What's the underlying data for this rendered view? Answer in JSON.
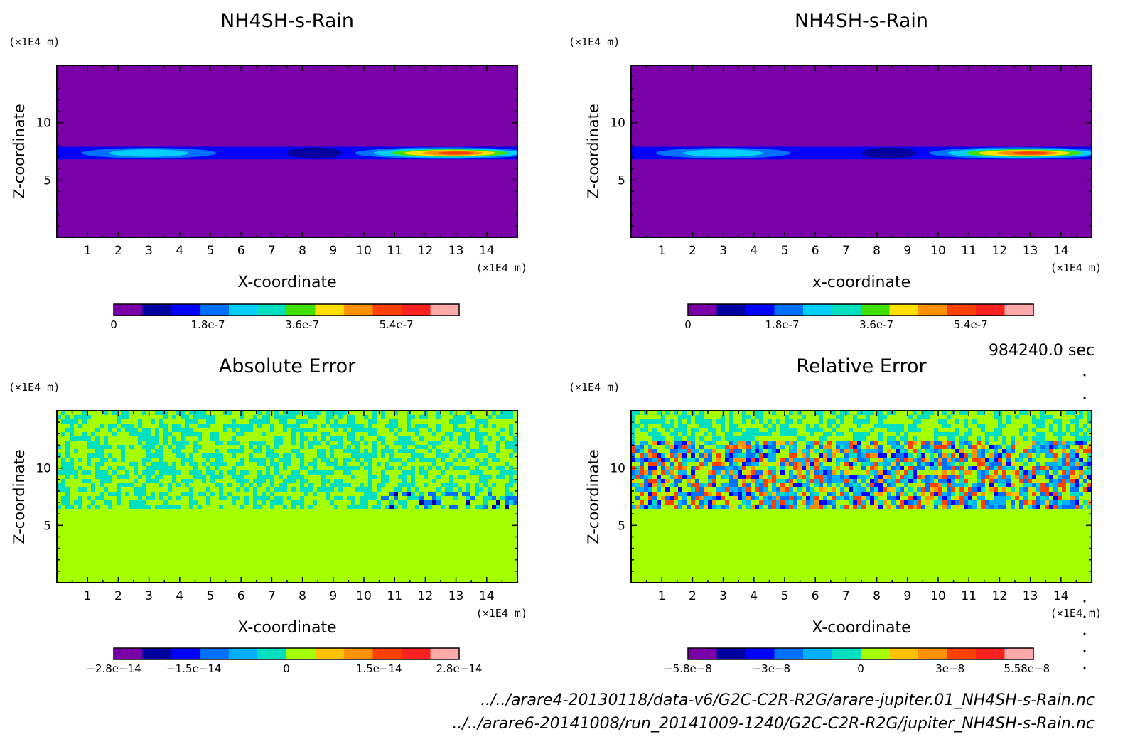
{
  "time_label": "984240.0 sec",
  "files": [
    "../../arare4-20130118/data-v6/G2C-C2R-R2G/arare-jupiter.01_NH4SH-s-Rain.nc",
    "../../arare6-20141008/run_20141009-1240/G2C-C2R-R2G/jupiter_NH4SH-s-Rain.nc"
  ],
  "chart_data": [
    {
      "type": "heatmap",
      "title": "NH4SH-s-Rain",
      "xlabel": "X-coordinate",
      "ylabel": "Z-coordinate",
      "x_unit": "(×1E4 m)",
      "y_unit": "(×1E4 m)",
      "xlim": [
        0,
        15
      ],
      "ylim": [
        0,
        15
      ],
      "x_ticks": [
        "1",
        "2",
        "3",
        "4",
        "5",
        "6",
        "7",
        "8",
        "9",
        "10",
        "11",
        "12",
        "13",
        "14"
      ],
      "y_ticks": [
        "5",
        "10"
      ],
      "field": "band",
      "band_z": [
        6.8,
        7.9
      ],
      "colorbar": {
        "colors": [
          "#7a00a8",
          "#00009e",
          "#0000ff",
          "#0070ff",
          "#00d0ff",
          "#00e0c0",
          "#40e000",
          "#ffe000",
          "#ff9000",
          "#ff4000",
          "#ff2020",
          "#ffaaaa"
        ],
        "tick_labels": [
          "0",
          "1.8e-7",
          "3.6e-7",
          "5.4e-7"
        ],
        "tick_values": [
          0,
          1.8e-07,
          3.6e-07,
          5.4e-07
        ],
        "vmin": 0,
        "vmax": 6.6e-07
      }
    },
    {
      "type": "heatmap",
      "title": "NH4SH-s-Rain",
      "xlabel": "x-coordinate",
      "ylabel": "Z-coordinate",
      "x_unit": "(×1E4 m)",
      "y_unit": "(×1E4 m)",
      "xlim": [
        0,
        15
      ],
      "ylim": [
        0,
        15
      ],
      "x_ticks": [
        "1",
        "2",
        "3",
        "4",
        "5",
        "6",
        "7",
        "8",
        "9",
        "10",
        "11",
        "12",
        "13",
        "14"
      ],
      "y_ticks": [
        "5",
        "10"
      ],
      "field": "band",
      "band_z": [
        6.8,
        7.9
      ],
      "colorbar": {
        "colors": [
          "#7a00a8",
          "#00009e",
          "#0000ff",
          "#0070ff",
          "#00d0ff",
          "#00e0c0",
          "#40e000",
          "#ffe000",
          "#ff9000",
          "#ff4000",
          "#ff2020",
          "#ffaaaa"
        ],
        "tick_labels": [
          "0",
          "1.8e-7",
          "3.6e-7",
          "5.4e-7"
        ],
        "tick_values": [
          0,
          1.8e-07,
          3.6e-07,
          5.4e-07
        ],
        "vmin": 0,
        "vmax": 6.6e-07
      }
    },
    {
      "type": "heatmap",
      "title": "Absolute Error",
      "xlabel": "X-coordinate",
      "ylabel": "Z-coordinate",
      "x_unit": "(×1E4 m)",
      "y_unit": "(×1E4 m)",
      "xlim": [
        0,
        15
      ],
      "ylim": [
        0,
        15
      ],
      "x_ticks": [
        "1",
        "2",
        "3",
        "4",
        "5",
        "6",
        "7",
        "8",
        "9",
        "10",
        "11",
        "12",
        "13",
        "14"
      ],
      "y_ticks": [
        "5",
        "10"
      ],
      "field": "abs_noise",
      "noise_z": [
        6.5,
        15
      ],
      "colorbar": {
        "colors": [
          "#7a00a8",
          "#00009e",
          "#0000ff",
          "#0070ff",
          "#00b0ff",
          "#00e0c0",
          "#a6ff00",
          "#ffc000",
          "#ff9000",
          "#ff4000",
          "#ff2020",
          "#ffaaaa"
        ],
        "tick_labels": [
          "−2.8e−14",
          "−1.5e−14",
          "0",
          "1.5e−14",
          "2.8e−14"
        ],
        "tick_values": [
          -2.8e-14,
          -1.5e-14,
          0,
          1.5e-14,
          2.8e-14
        ],
        "vmin": -2.8e-14,
        "vmax": 2.8e-14
      }
    },
    {
      "type": "heatmap",
      "title": "Relative Error",
      "xlabel": "X-coordinate",
      "ylabel": "Z-coordinate",
      "x_unit": "(×1E4 m)",
      "y_unit": "(×1E4 m)",
      "xlim": [
        0,
        15
      ],
      "ylim": [
        0,
        15
      ],
      "x_ticks": [
        "1",
        "2",
        "3",
        "4",
        "5",
        "6",
        "7",
        "8",
        "9",
        "10",
        "11",
        "12",
        "13",
        "14"
      ],
      "y_ticks": [
        "5",
        "10"
      ],
      "field": "rel_noise",
      "noise_z": [
        6.5,
        15
      ],
      "colorbar": {
        "colors": [
          "#7a00a8",
          "#00009e",
          "#0000ff",
          "#0070ff",
          "#00b0ff",
          "#00e0c0",
          "#a6ff00",
          "#ffc000",
          "#ff9000",
          "#ff4000",
          "#ff2020",
          "#ffaaaa"
        ],
        "tick_labels": [
          "−5.8e−8",
          "−3e−8",
          "0",
          "3e−8",
          "5.58e−8"
        ],
        "tick_values": [
          -5.8e-08,
          -3e-08,
          0,
          3e-08,
          5.58e-08
        ],
        "vmin": -5.8e-08,
        "vmax": 5.8e-08
      }
    }
  ]
}
